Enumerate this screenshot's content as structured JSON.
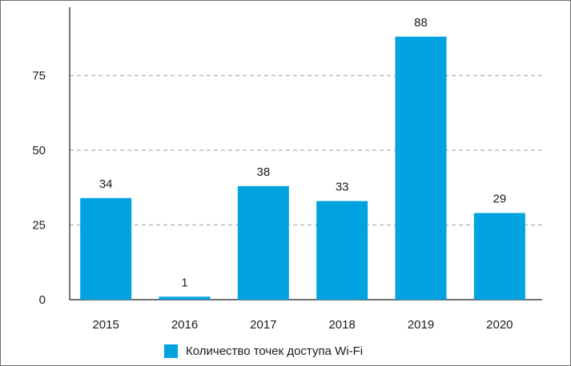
{
  "chart_data": {
    "type": "bar",
    "categories": [
      "2015",
      "2016",
      "2017",
      "2018",
      "2019",
      "2020"
    ],
    "series": [
      {
        "name": "Количество точек доступа Wi-Fi",
        "values": [
          34,
          1,
          38,
          33,
          88,
          29
        ]
      }
    ],
    "data_labels": [
      "34",
      "1",
      "38",
      "33",
      "88",
      "29"
    ],
    "y_ticks": [
      "0",
      "25",
      "50",
      "75"
    ],
    "y_tick_values": [
      0,
      25,
      50,
      75
    ],
    "ylim": [
      0,
      100
    ],
    "grid": "horizontal-dashed",
    "legend_position": "bottom",
    "colors": {
      "bar": "#00a3e0",
      "grid": "#b0b0b0",
      "axis": "#1a1a1a"
    }
  }
}
